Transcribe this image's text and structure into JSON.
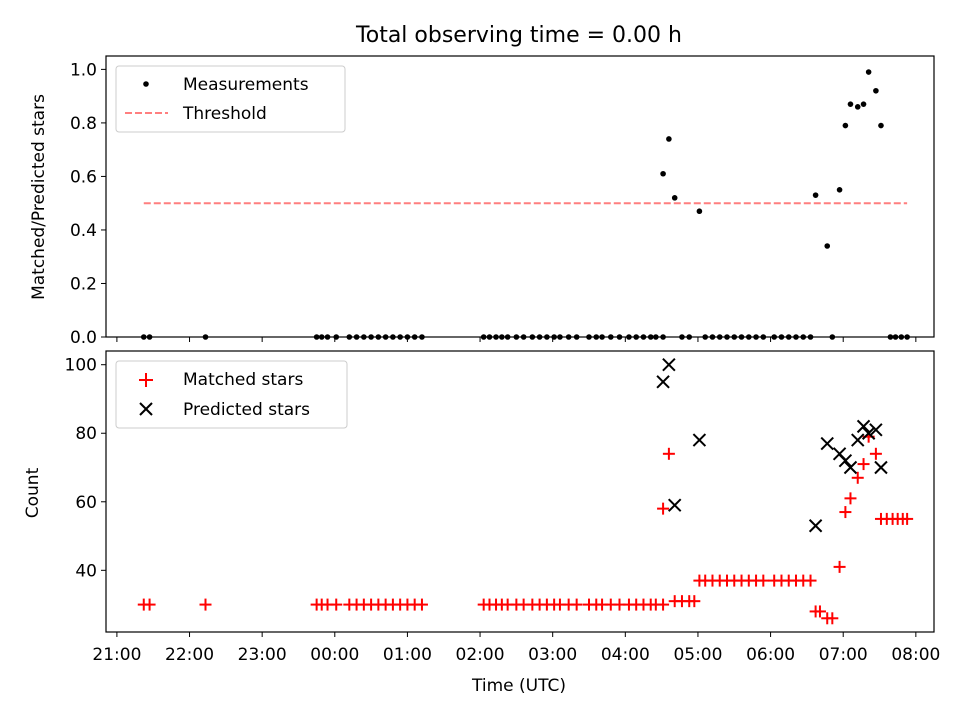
{
  "title": "Total observing time = 0.00 h",
  "xlabel": "Time (UTC)",
  "x_ticks": [
    "21:00",
    "22:00",
    "23:00",
    "00:00",
    "01:00",
    "02:00",
    "03:00",
    "04:00",
    "05:00",
    "06:00",
    "07:00",
    "08:00"
  ],
  "colors": {
    "measurement": "#000000",
    "threshold": "#ff7f7f",
    "matched": "#ff0000",
    "predicted": "#000000"
  },
  "chart_data": [
    {
      "type": "scatter",
      "ylabel": "Matched/Predicted stars",
      "xlim_hours": [
        -0.15,
        11.25
      ],
      "ylim": [
        0,
        1.05
      ],
      "y_ticks": [
        "0.0",
        "0.2",
        "0.4",
        "0.6",
        "0.8",
        "1.0"
      ],
      "legend_position": "top-left",
      "legend": [
        "Measurements",
        "Threshold"
      ],
      "series": [
        {
          "name": "Measurements",
          "marker": "dot",
          "points": [
            [
              0.37,
              0
            ],
            [
              0.45,
              0
            ],
            [
              1.22,
              0
            ],
            [
              2.75,
              0
            ],
            [
              2.82,
              0
            ],
            [
              2.9,
              0
            ],
            [
              3.02,
              0
            ],
            [
              3.2,
              0
            ],
            [
              3.3,
              0
            ],
            [
              3.4,
              0
            ],
            [
              3.5,
              0
            ],
            [
              3.6,
              0
            ],
            [
              3.7,
              0
            ],
            [
              3.8,
              0
            ],
            [
              3.9,
              0
            ],
            [
              4.0,
              0
            ],
            [
              4.1,
              0
            ],
            [
              4.2,
              0
            ],
            [
              5.05,
              0
            ],
            [
              5.13,
              0
            ],
            [
              5.22,
              0
            ],
            [
              5.3,
              0
            ],
            [
              5.38,
              0
            ],
            [
              5.5,
              0
            ],
            [
              5.6,
              0
            ],
            [
              5.72,
              0
            ],
            [
              5.82,
              0
            ],
            [
              5.92,
              0
            ],
            [
              6.02,
              0
            ],
            [
              6.1,
              0
            ],
            [
              6.22,
              0
            ],
            [
              6.33,
              0
            ],
            [
              6.5,
              0
            ],
            [
              6.6,
              0
            ],
            [
              6.68,
              0
            ],
            [
              6.8,
              0
            ],
            [
              6.92,
              0
            ],
            [
              7.05,
              0
            ],
            [
              7.15,
              0
            ],
            [
              7.25,
              0
            ],
            [
              7.35,
              0
            ],
            [
              7.42,
              0
            ],
            [
              7.52,
              0
            ],
            [
              7.52,
              0.61
            ],
            [
              7.6,
              0.74
            ],
            [
              7.68,
              0.52
            ],
            [
              7.78,
              0
            ],
            [
              7.88,
              0
            ],
            [
              8.02,
              0.47
            ],
            [
              8.1,
              0
            ],
            [
              8.2,
              0
            ],
            [
              8.3,
              0
            ],
            [
              8.4,
              0
            ],
            [
              8.5,
              0
            ],
            [
              8.6,
              0
            ],
            [
              8.7,
              0
            ],
            [
              8.8,
              0
            ],
            [
              8.9,
              0
            ],
            [
              9.05,
              0
            ],
            [
              9.15,
              0
            ],
            [
              9.25,
              0
            ],
            [
              9.35,
              0
            ],
            [
              9.45,
              0
            ],
            [
              9.55,
              0
            ],
            [
              9.62,
              0.53
            ],
            [
              9.78,
              0.34
            ],
            [
              9.85,
              0
            ],
            [
              9.95,
              0.55
            ],
            [
              10.03,
              0.79
            ],
            [
              10.1,
              0.87
            ],
            [
              10.2,
              0.86
            ],
            [
              10.28,
              0.87
            ],
            [
              10.35,
              0.99
            ],
            [
              10.45,
              0.92
            ],
            [
              10.52,
              0.79
            ],
            [
              10.65,
              0
            ],
            [
              10.72,
              0
            ],
            [
              10.8,
              0
            ],
            [
              10.88,
              0
            ]
          ]
        },
        {
          "name": "Threshold",
          "style": "dashed",
          "x_range": [
            0.37,
            10.88
          ],
          "y": 0.5
        }
      ]
    },
    {
      "type": "scatter",
      "ylabel": "Count",
      "xlim_hours": [
        -0.15,
        11.25
      ],
      "ylim": [
        22,
        104
      ],
      "y_ticks": [
        "40",
        "60",
        "80",
        "100"
      ],
      "legend_position": "top-left",
      "legend": [
        "Matched stars",
        "Predicted stars"
      ],
      "series": [
        {
          "name": "Matched stars",
          "marker": "plus",
          "points": [
            [
              0.37,
              30
            ],
            [
              0.45,
              30
            ],
            [
              1.22,
              30
            ],
            [
              2.75,
              30
            ],
            [
              2.82,
              30
            ],
            [
              2.9,
              30
            ],
            [
              3.02,
              30
            ],
            [
              3.2,
              30
            ],
            [
              3.3,
              30
            ],
            [
              3.4,
              30
            ],
            [
              3.5,
              30
            ],
            [
              3.6,
              30
            ],
            [
              3.7,
              30
            ],
            [
              3.8,
              30
            ],
            [
              3.9,
              30
            ],
            [
              4.0,
              30
            ],
            [
              4.1,
              30
            ],
            [
              4.2,
              30
            ],
            [
              5.05,
              30
            ],
            [
              5.13,
              30
            ],
            [
              5.22,
              30
            ],
            [
              5.3,
              30
            ],
            [
              5.38,
              30
            ],
            [
              5.5,
              30
            ],
            [
              5.6,
              30
            ],
            [
              5.72,
              30
            ],
            [
              5.82,
              30
            ],
            [
              5.92,
              30
            ],
            [
              6.02,
              30
            ],
            [
              6.1,
              30
            ],
            [
              6.22,
              30
            ],
            [
              6.33,
              30
            ],
            [
              6.5,
              30
            ],
            [
              6.6,
              30
            ],
            [
              6.68,
              30
            ],
            [
              6.8,
              30
            ],
            [
              6.92,
              30
            ],
            [
              7.05,
              30
            ],
            [
              7.15,
              30
            ],
            [
              7.25,
              30
            ],
            [
              7.35,
              30
            ],
            [
              7.42,
              30
            ],
            [
              7.52,
              30
            ],
            [
              7.52,
              58
            ],
            [
              7.6,
              74
            ],
            [
              7.68,
              31
            ],
            [
              7.78,
              31
            ],
            [
              7.88,
              31
            ],
            [
              7.95,
              31
            ],
            [
              8.02,
              37
            ],
            [
              8.1,
              37
            ],
            [
              8.2,
              37
            ],
            [
              8.3,
              37
            ],
            [
              8.4,
              37
            ],
            [
              8.5,
              37
            ],
            [
              8.6,
              37
            ],
            [
              8.7,
              37
            ],
            [
              8.8,
              37
            ],
            [
              8.9,
              37
            ],
            [
              9.05,
              37
            ],
            [
              9.15,
              37
            ],
            [
              9.25,
              37
            ],
            [
              9.35,
              37
            ],
            [
              9.45,
              37
            ],
            [
              9.55,
              37
            ],
            [
              9.62,
              28
            ],
            [
              9.68,
              28
            ],
            [
              9.78,
              26
            ],
            [
              9.85,
              26
            ],
            [
              9.95,
              41
            ],
            [
              10.03,
              57
            ],
            [
              10.1,
              61
            ],
            [
              10.2,
              67
            ],
            [
              10.28,
              71
            ],
            [
              10.35,
              79
            ],
            [
              10.45,
              74
            ],
            [
              10.52,
              55
            ],
            [
              10.6,
              55
            ],
            [
              10.68,
              55
            ],
            [
              10.75,
              55
            ],
            [
              10.82,
              55
            ],
            [
              10.88,
              55
            ]
          ]
        },
        {
          "name": "Predicted stars",
          "marker": "x",
          "points": [
            [
              7.52,
              95
            ],
            [
              7.6,
              100
            ],
            [
              7.68,
              59
            ],
            [
              8.02,
              78
            ],
            [
              9.62,
              53
            ],
            [
              9.78,
              77
            ],
            [
              9.95,
              74
            ],
            [
              10.03,
              72
            ],
            [
              10.1,
              70
            ],
            [
              10.2,
              78
            ],
            [
              10.28,
              82
            ],
            [
              10.35,
              80
            ],
            [
              10.45,
              81
            ],
            [
              10.52,
              70
            ]
          ]
        }
      ]
    }
  ]
}
